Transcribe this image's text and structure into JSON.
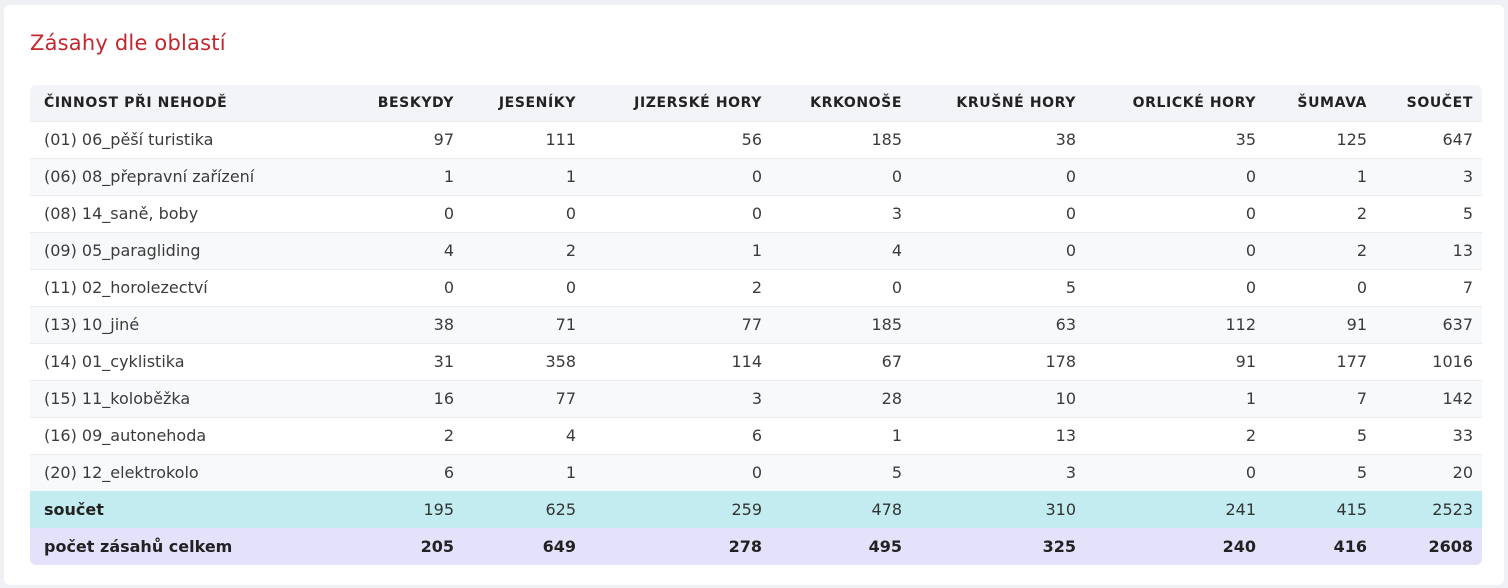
{
  "title": "Zásahy dle oblastí",
  "chart_data": {
    "type": "table",
    "title": "Zásahy dle oblastí",
    "columns": [
      "ČINNOST PŘI NEHODĚ",
      "BESKYDY",
      "JESENÍKY",
      "JIZERSKÉ HORY",
      "KRKONOŠE",
      "KRUŠNÉ HORY",
      "ORLICKÉ HORY",
      "ŠUMAVA",
      "SOUČET"
    ],
    "rows": [
      {
        "label": "(01) 06_pěší turistika",
        "values": [
          "97",
          "111",
          "56",
          "185",
          "38",
          "35",
          "125",
          "647"
        ]
      },
      {
        "label": "(06) 08_přepravní zařízení",
        "values": [
          "1",
          "1",
          "0",
          "0",
          "0",
          "0",
          "1",
          "3"
        ]
      },
      {
        "label": "(08) 14_saně, boby",
        "values": [
          "0",
          "0",
          "0",
          "3",
          "0",
          "0",
          "2",
          "5"
        ]
      },
      {
        "label": "(09) 05_paragliding",
        "values": [
          "4",
          "2",
          "1",
          "4",
          "0",
          "0",
          "2",
          "13"
        ]
      },
      {
        "label": "(11) 02_horolezectví",
        "values": [
          "0",
          "0",
          "2",
          "0",
          "5",
          "0",
          "0",
          "7"
        ]
      },
      {
        "label": "(13) 10_jiné",
        "values": [
          "38",
          "71",
          "77",
          "185",
          "63",
          "112",
          "91",
          "637"
        ]
      },
      {
        "label": "(14) 01_cyklistika",
        "values": [
          "31",
          "358",
          "114",
          "67",
          "178",
          "91",
          "177",
          "1016"
        ]
      },
      {
        "label": "(15) 11_koloběžka",
        "values": [
          "16",
          "77",
          "3",
          "28",
          "10",
          "1",
          "7",
          "142"
        ]
      },
      {
        "label": "(16) 09_autonehoda",
        "values": [
          "2",
          "4",
          "6",
          "1",
          "13",
          "2",
          "5",
          "33"
        ]
      },
      {
        "label": "(20) 12_elektrokolo",
        "values": [
          "6",
          "1",
          "0",
          "5",
          "3",
          "0",
          "5",
          "20"
        ]
      }
    ],
    "sum_row": {
      "label": "součet",
      "values": [
        "195",
        "625",
        "259",
        "478",
        "310",
        "241",
        "415",
        "2523"
      ]
    },
    "total_row": {
      "label": "počet zásahů celkem",
      "values": [
        "205",
        "649",
        "278",
        "495",
        "325",
        "240",
        "416",
        "2608"
      ]
    }
  }
}
